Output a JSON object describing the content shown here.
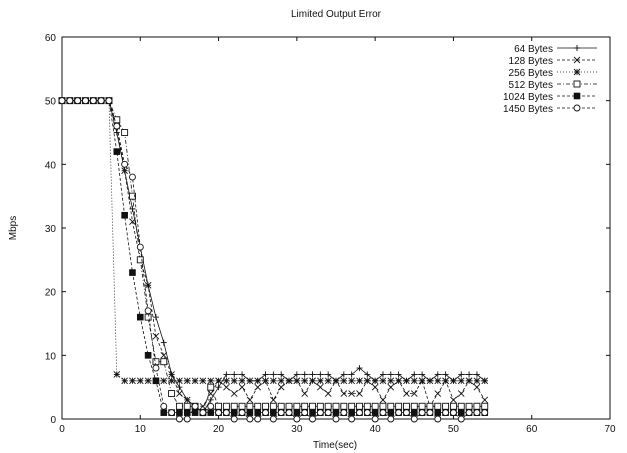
{
  "chart_data": {
    "type": "line",
    "title": "Limited Output Error",
    "xlabel": "Time(sec)",
    "ylabel": "Mbps",
    "xlim": [
      0,
      70
    ],
    "ylim": [
      0,
      60
    ],
    "x_ticks": [
      0,
      10,
      20,
      30,
      40,
      50,
      60,
      70
    ],
    "y_ticks": [
      0,
      10,
      20,
      30,
      40,
      50,
      60
    ],
    "grid": false,
    "legend_position": "top-right",
    "series": [
      {
        "name": "64 Bytes",
        "marker": "plus",
        "dash": "solid",
        "x": [
          0,
          1,
          2,
          3,
          4,
          5,
          6,
          7,
          8,
          9,
          10,
          11,
          12,
          13,
          14,
          15,
          16,
          17,
          18,
          19,
          20,
          21,
          22,
          23,
          24,
          25,
          26,
          27,
          28,
          29,
          30,
          31,
          32,
          33,
          34,
          35,
          36,
          37,
          38,
          39,
          40,
          41,
          42,
          43,
          44,
          45,
          46,
          47,
          48,
          49,
          50,
          51,
          52,
          53,
          54
        ],
        "y": [
          50,
          50,
          50,
          50,
          50,
          50,
          50,
          45,
          39,
          33,
          27,
          21,
          16,
          12,
          7,
          5,
          3,
          2,
          1,
          3,
          5,
          7,
          7,
          7,
          6,
          6,
          7,
          7,
          7,
          6,
          7,
          7,
          7,
          7,
          7,
          6,
          7,
          7,
          8,
          7,
          6,
          7,
          7,
          7,
          6,
          7,
          7,
          6,
          7,
          7,
          6,
          7,
          7,
          7,
          6
        ]
      },
      {
        "name": "128 Bytes",
        "marker": "x",
        "dash": "dashed",
        "x": [
          0,
          1,
          2,
          3,
          4,
          5,
          6,
          7,
          8,
          9,
          10,
          11,
          12,
          13,
          14,
          15,
          16,
          17,
          18,
          19,
          20,
          21,
          22,
          23,
          24,
          25,
          26,
          27,
          28,
          29,
          30,
          31,
          32,
          33,
          34,
          35,
          36,
          37,
          38,
          39,
          40,
          41,
          42,
          43,
          44,
          45,
          46,
          47,
          48,
          49,
          50,
          51,
          52,
          53,
          54
        ],
        "y": [
          50,
          50,
          50,
          50,
          50,
          50,
          50,
          46,
          39,
          31,
          25,
          21,
          13,
          10,
          7,
          4,
          3,
          2,
          2,
          4,
          6,
          5,
          4,
          5,
          3,
          5,
          6,
          3,
          5,
          6,
          6,
          4,
          6,
          5,
          4,
          6,
          4,
          4,
          4,
          6,
          5,
          3,
          5,
          6,
          4,
          4,
          6,
          2,
          4,
          6,
          3,
          4,
          6,
          5,
          3
        ]
      },
      {
        "name": "256 Bytes",
        "marker": "asterisk",
        "dash": "dotted",
        "x": [
          0,
          1,
          2,
          3,
          4,
          5,
          6,
          7,
          8,
          9,
          10,
          11,
          12,
          13,
          14,
          15,
          16,
          17,
          18,
          19,
          20,
          21,
          22,
          23,
          24,
          25,
          26,
          27,
          28,
          29,
          30,
          31,
          32,
          33,
          34,
          35,
          36,
          37,
          38,
          39,
          40,
          41,
          42,
          43,
          44,
          45,
          46,
          47,
          48,
          49,
          50,
          51,
          52,
          53,
          54
        ],
        "y": [
          50,
          50,
          50,
          50,
          50,
          50,
          50,
          7,
          6,
          6,
          6,
          6,
          6,
          6,
          6,
          6,
          6,
          6,
          6,
          6,
          6,
          6,
          6,
          6,
          6,
          6,
          6,
          6,
          6,
          6,
          6,
          6,
          6,
          6,
          6,
          6,
          6,
          6,
          6,
          6,
          6,
          6,
          6,
          6,
          6,
          6,
          6,
          6,
          6,
          6,
          6,
          6,
          6,
          6,
          6
        ]
      },
      {
        "name": "512 Bytes",
        "marker": "square",
        "dash": "dash-dot",
        "x": [
          0,
          1,
          2,
          3,
          4,
          5,
          6,
          7,
          8,
          9,
          10,
          11,
          12,
          13,
          14,
          15,
          16,
          17,
          18,
          19,
          20,
          21,
          22,
          23,
          24,
          25,
          26,
          27,
          28,
          29,
          30,
          31,
          32,
          33,
          34,
          35,
          36,
          37,
          38,
          39,
          40,
          41,
          42,
          43,
          44,
          45,
          46,
          47,
          48,
          49,
          50,
          51,
          52,
          53,
          54
        ],
        "y": [
          50,
          50,
          50,
          50,
          50,
          50,
          50,
          47,
          45,
          35,
          25,
          16,
          9,
          9,
          4,
          2,
          2,
          2,
          1,
          5,
          2,
          2,
          2,
          2,
          2,
          2,
          2,
          2,
          2,
          2,
          2,
          2,
          2,
          2,
          2,
          2,
          2,
          2,
          2,
          2,
          2,
          2,
          2,
          2,
          2,
          2,
          2,
          2,
          2,
          2,
          2,
          2,
          2,
          2,
          2
        ]
      },
      {
        "name": "1024 Bytes",
        "marker": "filled-square",
        "dash": "dashed",
        "x": [
          0,
          1,
          2,
          3,
          4,
          5,
          6,
          7,
          8,
          9,
          10,
          11,
          12,
          13,
          14,
          15,
          16,
          17,
          18,
          19,
          20,
          21,
          22,
          23,
          24,
          25,
          26,
          27,
          28,
          29,
          30,
          31,
          32,
          33,
          34,
          35,
          36,
          37,
          38,
          39,
          40,
          41,
          42,
          43,
          44,
          45,
          46,
          47,
          48,
          49,
          50,
          51,
          52,
          53,
          54
        ],
        "y": [
          50,
          50,
          50,
          50,
          50,
          50,
          50,
          42,
          32,
          23,
          16,
          10,
          6,
          1,
          1,
          1,
          1,
          1,
          1,
          1,
          1,
          1,
          1,
          1,
          1,
          1,
          1,
          1,
          1,
          1,
          1,
          1,
          1,
          1,
          1,
          1,
          1,
          1,
          1,
          1,
          1,
          1,
          1,
          1,
          1,
          1,
          1,
          1,
          1,
          1,
          1,
          1,
          1,
          1,
          1
        ]
      },
      {
        "name": "1450 Bytes",
        "marker": "circle",
        "dash": "dashed",
        "x": [
          0,
          1,
          2,
          3,
          4,
          5,
          6,
          7,
          8,
          9,
          10,
          11,
          12,
          13,
          14,
          15,
          16,
          17,
          18,
          19,
          20,
          21,
          22,
          23,
          24,
          25,
          26,
          27,
          28,
          29,
          30,
          31,
          32,
          33,
          34,
          35,
          36,
          37,
          38,
          39,
          40,
          41,
          42,
          43,
          44,
          45,
          46,
          47,
          48,
          49,
          50,
          51,
          52,
          53,
          54
        ],
        "y": [
          50,
          50,
          50,
          50,
          50,
          50,
          50,
          46,
          40,
          38,
          27,
          17,
          8,
          2,
          1,
          0,
          0,
          2,
          1,
          2,
          1,
          1,
          0,
          1,
          0,
          0,
          1,
          0,
          1,
          1,
          0,
          1,
          0,
          1,
          1,
          0,
          1,
          0,
          1,
          1,
          0,
          1,
          0,
          1,
          1,
          0,
          1,
          1,
          0,
          1,
          1,
          0,
          1,
          1,
          1
        ]
      }
    ]
  }
}
